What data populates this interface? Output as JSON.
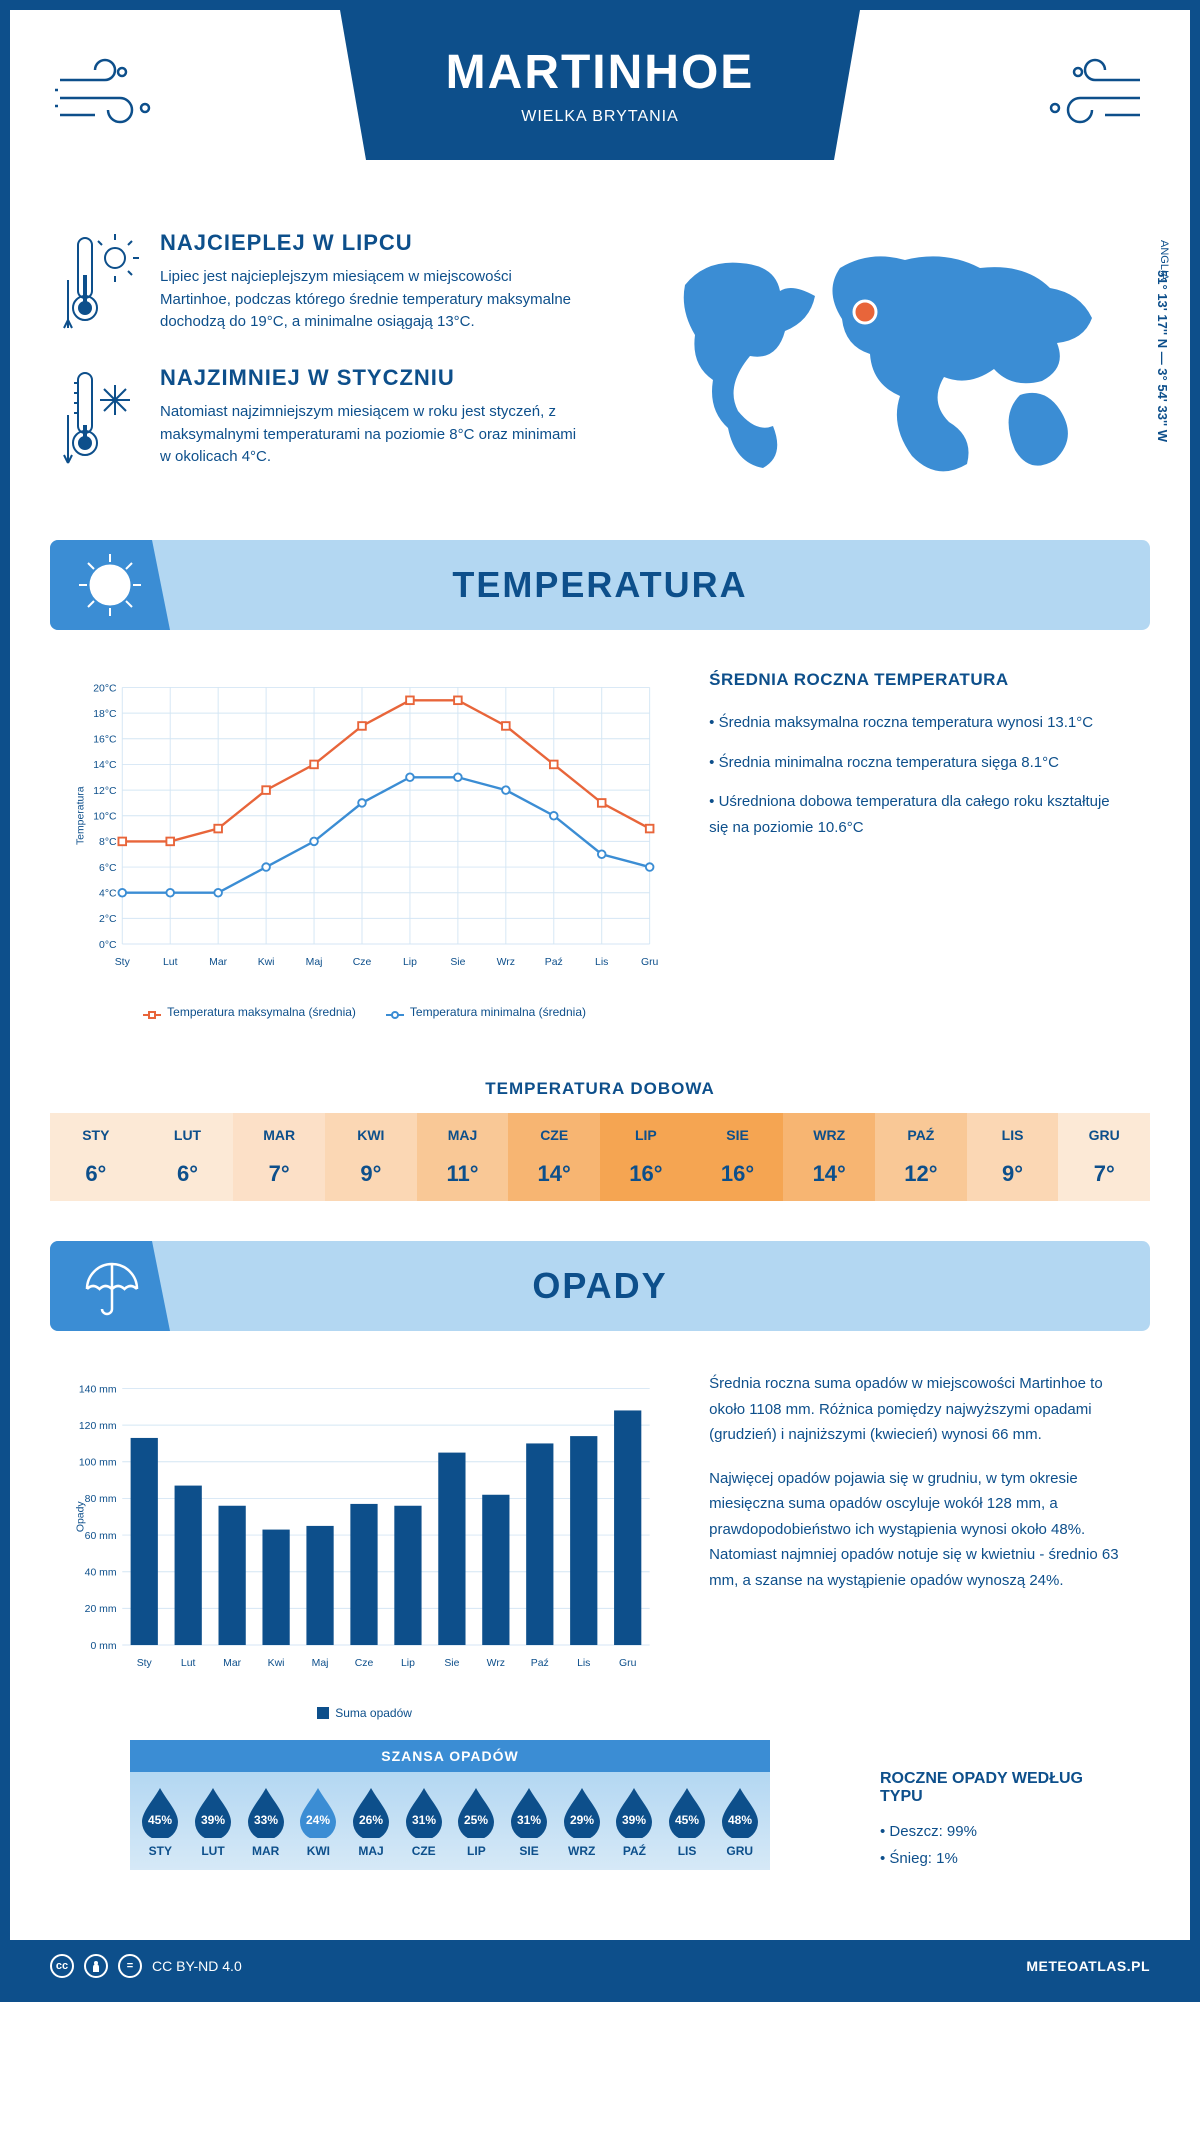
{
  "colors": {
    "primary": "#0d4f8b",
    "accent": "#3b8dd4",
    "light": "#b3d7f2",
    "chart_max": "#e8653a",
    "chart_min": "#3b8dd4",
    "grid": "#d4e6f4"
  },
  "header": {
    "title": "MARTINHOE",
    "subtitle": "WIELKA BRYTANIA"
  },
  "location": {
    "coords": "51° 13' 17'' N — 3° 54' 33'' W",
    "region": "ANGLIA"
  },
  "info": {
    "warmest": {
      "title": "NAJCIEPLEJ W LIPCU",
      "text": "Lipiec jest najcieplejszym miesiącem w miejscowości Martinhoe, podczas którego średnie temperatury maksymalne dochodzą do 19°C, a minimalne osiągają 13°C."
    },
    "coldest": {
      "title": "NAJZIMNIEJ W STYCZNIU",
      "text": "Natomiast najzimniejszym miesiącem w roku jest styczeń, z maksymalnymi temperaturami na poziomie 8°C oraz minimami w okolicach 4°C."
    }
  },
  "sections": {
    "temp": "TEMPERATURA",
    "precip": "OPADY"
  },
  "months": [
    "Sty",
    "Lut",
    "Mar",
    "Kwi",
    "Maj",
    "Cze",
    "Lip",
    "Sie",
    "Wrz",
    "Paź",
    "Lis",
    "Gru"
  ],
  "months_upper": [
    "STY",
    "LUT",
    "MAR",
    "KWI",
    "MAJ",
    "CZE",
    "LIP",
    "SIE",
    "WRZ",
    "PAŹ",
    "LIS",
    "GRU"
  ],
  "temp_chart": {
    "type": "line",
    "ylabel": "Temperatura",
    "ylim": [
      0,
      20
    ],
    "ytick_step": 2,
    "max_series": [
      8,
      8,
      9,
      12,
      14,
      17,
      19,
      19,
      17,
      14,
      11,
      9
    ],
    "min_series": [
      4,
      4,
      4,
      6,
      8,
      11,
      13,
      13,
      12,
      10,
      7,
      6
    ],
    "legend_max": "Temperatura maksymalna (średnia)",
    "legend_min": "Temperatura minimalna (średnia)"
  },
  "temp_stats": {
    "title": "ŚREDNIA ROCZNA TEMPERATURA",
    "b1": "• Średnia maksymalna roczna temperatura wynosi 13.1°C",
    "b2": "• Średnia minimalna roczna temperatura sięga 8.1°C",
    "b3": "• Uśredniona dobowa temperatura dla całego roku kształtuje się na poziomie 10.6°C"
  },
  "daily": {
    "title": "TEMPERATURA DOBOWA",
    "values": [
      "6°",
      "6°",
      "7°",
      "9°",
      "11°",
      "14°",
      "16°",
      "16°",
      "14°",
      "12°",
      "9°",
      "7°"
    ],
    "bg": [
      "#fce9d6",
      "#fce9d6",
      "#fce0c7",
      "#fbd7b4",
      "#f9c896",
      "#f7b572",
      "#f5a552",
      "#f5a552",
      "#f7b572",
      "#f9c896",
      "#fbd7b4",
      "#fce9d6"
    ]
  },
  "precip_chart": {
    "type": "bar",
    "ylabel": "Opady",
    "ylim": [
      0,
      140
    ],
    "ytick_step": 20,
    "values": [
      113,
      87,
      76,
      63,
      65,
      77,
      76,
      105,
      82,
      110,
      114,
      128
    ],
    "legend": "Suma opadów",
    "bar_color": "#0d4f8b"
  },
  "precip_text": {
    "p1": "Średnia roczna suma opadów w miejscowości Martinhoe to około 1108 mm. Różnica pomiędzy najwyższymi opadami (grudzień) i najniższymi (kwiecień) wynosi 66 mm.",
    "p2": "Najwięcej opadów pojawia się w grudniu, w tym okresie miesięczna suma opadów oscyluje wokół 128 mm, a prawdopodobieństwo ich wystąpienia wynosi około 48%. Natomiast najmniej opadów notuje się w kwietniu - średnio 63 mm, a szanse na wystąpienie opadów wynoszą 24%."
  },
  "chance": {
    "title": "SZANSA OPADÓW",
    "values": [
      "45%",
      "39%",
      "33%",
      "24%",
      "26%",
      "31%",
      "25%",
      "31%",
      "29%",
      "39%",
      "45%",
      "48%"
    ],
    "colors": [
      "#0d4f8b",
      "#0d4f8b",
      "#0d4f8b",
      "#3b8dd4",
      "#0d4f8b",
      "#0d4f8b",
      "#0d4f8b",
      "#0d4f8b",
      "#0d4f8b",
      "#0d4f8b",
      "#0d4f8b",
      "#0d4f8b"
    ]
  },
  "types": {
    "title": "ROCZNE OPADY WEDŁUG TYPU",
    "rain": "• Deszcz: 99%",
    "snow": "• Śnieg: 1%"
  },
  "footer": {
    "license": "CC BY-ND 4.0",
    "brand": "METEOATLAS.PL"
  }
}
